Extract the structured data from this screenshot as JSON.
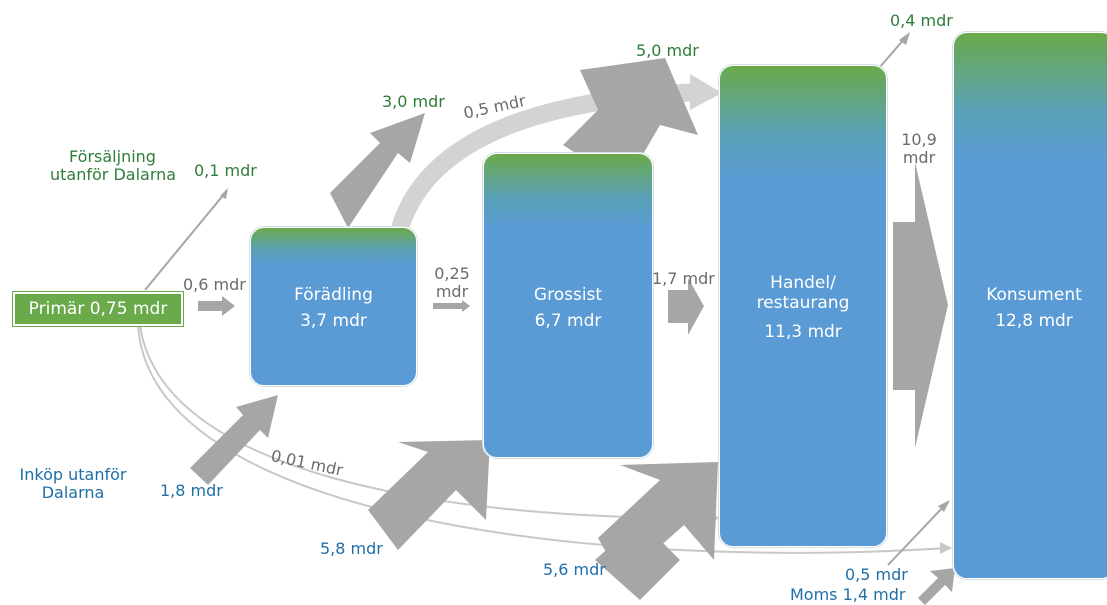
{
  "nodes": {
    "primar": "Primär 0,75 mdr",
    "foradling": {
      "name": "Förädling",
      "value": "3,7 mdr"
    },
    "grossist": {
      "name": "Grossist",
      "value": "6,7 mdr"
    },
    "handel": {
      "name_line1": "Handel/",
      "name_line2": "restaurang",
      "value": "11,3 mdr"
    },
    "konsument": {
      "name": "Konsument",
      "value": "12,8 mdr"
    }
  },
  "labels": {
    "forsaljning_line1": "Försäljning",
    "forsaljning_line2": "utanför Dalarna",
    "inkop_line1": "Inköp utanför",
    "inkop_line2": "Dalarna",
    "flow_primar_export": "0,1 mdr",
    "flow_primar_foradling": "0,6 mdr",
    "flow_foradling_export": "3,0 mdr",
    "flow_foradling_handel": "0,5 mdr",
    "flow_foradling_grossist_line1": "0,25",
    "flow_foradling_grossist_line2": "mdr",
    "flow_grossist_export": "5,0 mdr",
    "flow_grossist_handel": "1,7 mdr",
    "flow_handel_export": "0,4 mdr",
    "flow_handel_konsument_line1": "10,9",
    "flow_handel_konsument_line2": "mdr",
    "flow_primar_handel": "0,01 mdr",
    "flow_import_foradling": "1,8 mdr",
    "flow_import_grossist": "5,8 mdr",
    "flow_import_handel": "5,6 mdr",
    "flow_primar_konsument": "0,5 mdr",
    "moms": "Moms 1,4 mdr"
  },
  "colors": {
    "green": "#6aaa4b",
    "blue": "#5b9bd5",
    "arrow_gray": "#a6a6a6",
    "curve_gray": "#d0d0d0",
    "label_green": "#2f7d3a",
    "label_blue": "#1f6fa8",
    "label_gray": "#6b6b6b"
  }
}
